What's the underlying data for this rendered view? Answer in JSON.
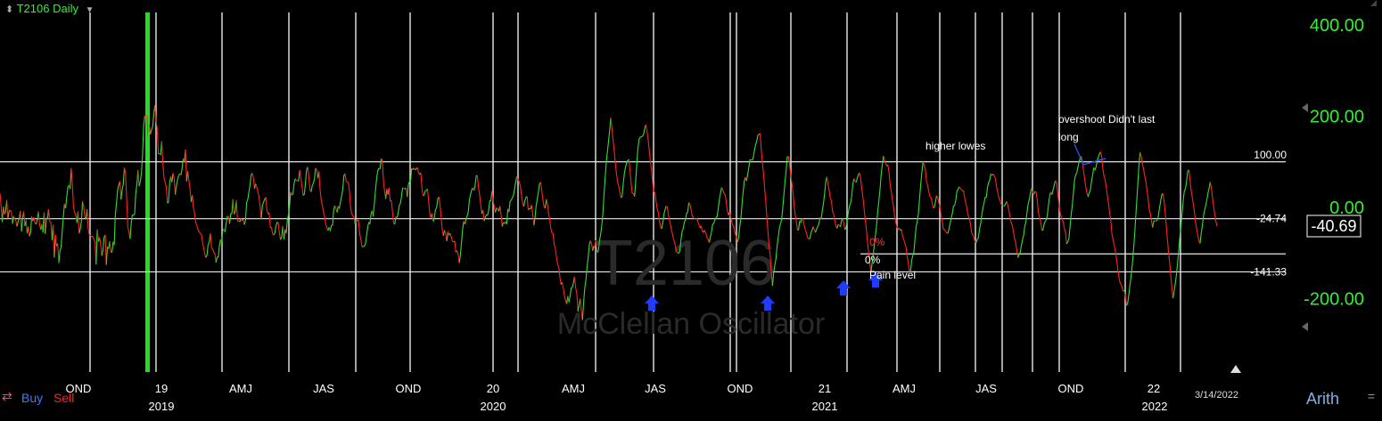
{
  "header": {
    "symbol_label": "T2106 Daily",
    "sort_icon": "up-down-arrow-icon",
    "dropdown_icon": "chevron-down-icon"
  },
  "toolbar": {
    "buy_label": "Buy",
    "sell_label": "Sell",
    "scale_label": "Arith",
    "date_label": "3/14/2022",
    "colors": {
      "buy": "#3a7dff",
      "sell": "#ff2222"
    }
  },
  "chart_data": {
    "type": "line",
    "watermark_title": "T2106",
    "watermark_subtitle": "McClellan Oscillator",
    "y_axis": {
      "ticks": [
        "400.00",
        "200.00",
        "0.00",
        "-200.00"
      ],
      "tick_values": [
        400,
        200,
        0,
        -200
      ],
      "color": "#33ee33",
      "range": [
        -330,
        460
      ]
    },
    "current_value": "-40.69",
    "horizontal_levels": [
      {
        "value": 100,
        "label": "100.00"
      },
      {
        "value": -24.74,
        "label": "-24.74"
      },
      {
        "value": -141.33,
        "label": "-141.33"
      },
      {
        "value": -102,
        "label": ""
      }
    ],
    "x_axis": {
      "quarter_ticks": [
        "OND",
        "19",
        "AMJ",
        "JAS",
        "OND",
        "20",
        "AMJ",
        "JAS",
        "OND",
        "21",
        "AMJ",
        "JAS",
        "OND",
        "22"
      ],
      "year_ticks": [
        "2019",
        "2020",
        "2021",
        "2022"
      ]
    },
    "annotations": [
      {
        "text": "higher lowes"
      },
      {
        "text": "overshoot Didn't last"
      },
      {
        "text": "long"
      },
      {
        "text": "0%",
        "color": "#ff3333"
      },
      {
        "text": "0%"
      },
      {
        "text": "Pain level"
      }
    ],
    "buy_markers": 4,
    "series": [
      {
        "colors": {
          "rising": "#33dd33",
          "falling": "#ff2222"
        },
        "values": [
          31,
          2,
          -32,
          2,
          -15,
          -9,
          16,
          -24,
          -9,
          -6,
          -10,
          -36,
          -19,
          -25,
          -29,
          -42,
          -31,
          -24,
          -8,
          -53,
          -24,
          -9,
          -41,
          -28,
          -57,
          -42,
          -63,
          -55,
          -20,
          -30,
          -22,
          -35,
          -37,
          -26,
          -9,
          -37,
          -49,
          -37,
          -55,
          -11,
          -58,
          -24,
          -24,
          -4,
          -31,
          -34,
          -72,
          -38,
          -110,
          -60,
          -85,
          -79,
          -122,
          -96,
          -87,
          -52,
          -22,
          8,
          -2,
          22,
          44,
          49,
          40,
          86,
          50,
          -1,
          -11,
          -18,
          -34,
          -9,
          -57,
          -46,
          -31,
          13,
          2,
          -21,
          -24,
          -4,
          -46,
          -60,
          -62,
          -64,
          -64,
          -69,
          -77,
          -125,
          -48,
          -75,
          -66,
          -81,
          -106,
          -96,
          -66,
          -60,
          -126,
          -86,
          -91,
          -74,
          -98,
          -98,
          -75,
          -83,
          -14,
          10,
          38,
          49,
          57,
          17,
          39,
          51,
          87,
          76,
          18,
          -44,
          -53,
          -69,
          -34,
          -17,
          -17,
          -15,
          29,
          50,
          82,
          46,
          56,
          74,
          112,
          179,
          201,
          194,
          202,
          147,
          181,
          160,
          171,
          177,
          206,
          224,
          189,
          172,
          118,
          118,
          115,
          145,
          96,
          65,
          55,
          44,
          9,
          12,
          54,
          68,
          55,
          75,
          62,
          28,
          48,
          61,
          70,
          74,
          71,
          85,
          107,
          99,
          127,
          57,
          80,
          58,
          41,
          12,
          27,
          -1,
          -13,
          -33,
          -39,
          -49,
          -53,
          -57,
          -59,
          -76,
          -88,
          -102,
          -110,
          -104,
          -82,
          -76,
          -57,
          -88,
          -91,
          -99,
          -101,
          -121,
          -108,
          -110,
          -84,
          -70,
          -79,
          -49,
          -49,
          -54,
          -34,
          -19,
          -20,
          -36,
          -14,
          -13,
          18,
          -15,
          -8,
          15,
          -30,
          -29,
          -32,
          -24,
          -29,
          -26,
          -38,
          -30,
          11,
          16,
          33,
          49,
          71,
          75,
          64,
          41,
          52,
          44,
          35,
          23,
          1,
          -25,
          5,
          11,
          18,
          22,
          -7,
          -14,
          -12,
          -44,
          -44,
          -58,
          -61,
          -56,
          -41,
          -33,
          -33,
          -56,
          -71,
          -65,
          -41,
          -70,
          -48,
          -57,
          -29,
          -16,
          3,
          34,
          27,
          30,
          52,
          63,
          59,
          58,
          59,
          82,
          65,
          46,
          26,
          29,
          51,
          82,
          89,
          69,
          39,
          34,
          47,
          53,
          62,
          86,
          83,
          64,
          79,
          39,
          16,
          4,
          -10,
          -20,
          -37,
          -45,
          -51,
          -43,
          -52,
          -39,
          -40,
          -6,
          4,
          -3,
          -11,
          3,
          -3,
          12,
          24,
          39,
          70,
          74,
          58,
          55,
          54,
          34,
          -2,
          -14,
          -18,
          -25,
          -37,
          -26,
          -30,
          -28,
          -59,
          -69,
          -86,
          -86,
          -85,
          -81,
          -64,
          -45,
          -32,
          -37,
          -15,
          -7,
          -20,
          10,
          39,
          63,
          80,
          86,
          84,
          107,
          103,
          57,
          37,
          19,
          41,
          28,
          43,
          14,
          15,
          -9,
          -35,
          -37,
          -21,
          -22,
          -13,
          4,
          9,
          24,
          43,
          42,
          40,
          43,
          23,
          50,
          56,
          58,
          86,
          83,
          86,
          82,
          85,
          87,
          76,
          72,
          76,
          44,
          26,
          27,
          36,
          37,
          41,
          12,
          -15,
          -22,
          -13,
          -31,
          -23,
          -5,
          -1,
          18,
          23,
          6,
          -20,
          -49,
          -62,
          -50,
          -57,
          -74,
          -53,
          -61,
          -57,
          -65,
          -74,
          -76,
          -74,
          -98,
          -95,
          -102,
          -122,
          -106,
          -77,
          -47,
          -30,
          -37,
          -26,
          -19,
          -10,
          17,
          28,
          38,
          43,
          37,
          47,
          69,
          70,
          45,
          27,
          6,
          -14,
          -6,
          -30,
          -22,
          -17,
          -17,
          -7,
          14,
          15,
          36,
          16,
          0,
          -11,
          -1,
          -3,
          -9,
          3,
          -16,
          -42,
          -33,
          -36,
          -31,
          -37,
          -3,
          -10,
          13,
          16,
          21,
          27,
          42,
          57,
          68,
          61,
          56,
          46,
          28,
          9,
          2,
          14,
          22,
          24,
          -5,
          -3,
          -3,
          5,
          -16,
          -39,
          -24,
          3,
          18,
          33,
          52,
          55,
          36,
          16,
          1,
          -2,
          18,
          8,
          -14,
          -26,
          -46,
          -56,
          -58,
          -82,
          -90,
          -108,
          -126,
          -130,
          -154,
          -169,
          -164,
          -177,
          -193,
          -204,
          -212,
          -194,
          -208,
          -194,
          -177,
          -175,
          -165,
          -152,
          -177,
          -190,
          -228,
          -214,
          -200,
          -228,
          -247,
          -207,
          -176,
          -160,
          -131,
          -109,
          -83,
          -73,
          -79,
          -95,
          -84,
          -89,
          -74,
          -99,
          -95,
          -73,
          -60,
          -40,
          -13,
          26,
          64,
          100,
          121,
          145,
          169,
          197,
          174,
          147,
          126,
          98,
          74,
          57,
          47,
          33,
          21,
          24,
          52,
          75,
          88,
          98,
          103,
          105,
          81,
          52,
          31,
          30,
          24,
          55,
          95,
          131,
          149,
          154,
          155,
          156,
          160,
          173,
          181,
          168,
          150,
          124,
          102,
          82,
          55,
          33,
          33,
          13,
          -2,
          -11,
          -28,
          -43,
          -47,
          -34,
          -15,
          -5,
          3,
          0,
          -17,
          -29,
          -42,
          -53,
          -64,
          -74,
          -82,
          -96,
          -100,
          -100,
          -96,
          -72,
          -53,
          -47,
          -33,
          -27,
          -13,
          -11,
          11,
          6,
          -5,
          -19,
          -22,
          -25,
          -25,
          -24,
          -31,
          -38,
          -45,
          -41,
          -53,
          -54,
          -50,
          -56,
          -66,
          -69,
          -77,
          -65,
          -55,
          -38,
          -35,
          -28,
          -22,
          -20,
          -2,
          17,
          32,
          44,
          38,
          32,
          27,
          15,
          -8,
          -17,
          -10,
          -21,
          -32,
          -40,
          -46,
          -58,
          -64,
          -76,
          -67,
          -42,
          -25,
          6,
          34,
          57,
          66,
          58,
          72,
          87,
          104,
          105,
          103,
          110,
          124,
          137,
          145,
          158,
          160,
          162,
          127,
          99,
          76,
          41,
          15,
          -23,
          -55,
          -87,
          -107,
          -145,
          -172,
          -143,
          -127,
          -112,
          -86,
          -66,
          -46,
          -36,
          -28,
          -2,
          26,
          56,
          80,
          110,
          112,
          97,
          74,
          54,
          34,
          8,
          -15,
          -29,
          -50,
          -49,
          -29,
          -34,
          -24,
          -27,
          -40,
          -48,
          -57,
          -66,
          -69,
          -68,
          -56,
          -50,
          -42,
          -50,
          -55,
          -47,
          -42,
          -36,
          -22,
          -25,
          -7,
          8,
          30,
          55,
          67,
          52,
          38,
          22,
          15,
          -9,
          -14,
          -27,
          -41,
          -46,
          -37,
          -39,
          -43,
          -29,
          -25,
          -35,
          -49,
          -44,
          -30,
          -11,
          3,
          9,
          24,
          51,
          63,
          57,
          55,
          65,
          73,
          75,
          61,
          39,
          21,
          -4,
          -28,
          -48,
          -77,
          -100,
          -121,
          -142,
          -123,
          -105,
          -82,
          -60,
          -38,
          -9,
          15,
          39,
          71,
          92,
          113,
          104,
          97,
          91,
          93,
          77,
          49,
          36,
          15,
          0,
          -20,
          -33,
          -44,
          -48,
          -45,
          -51,
          -48,
          -64,
          -70,
          -79,
          -87,
          -107,
          -122,
          -139,
          -142,
          -116,
          -106,
          -97,
          -67,
          -41,
          -30,
          -12,
          20,
          50,
          76,
          100,
          93,
          85,
          59,
          49,
          37,
          24,
          22,
          13,
          -1,
          0,
          11,
          26,
          21,
          11,
          1,
          -18,
          -29,
          -48,
          -49,
          -53,
          -56,
          -57,
          -48,
          -35,
          -24,
          -12,
          3,
          4,
          16,
          35,
          40,
          45,
          42,
          38,
          36,
          36,
          19,
          8,
          -4,
          -18,
          -23,
          -36,
          -56,
          -60,
          -67,
          -74,
          -78,
          -70,
          -67,
          -48,
          -35,
          -17,
          -2,
          10,
          23,
          21,
          44,
          54,
          60,
          74,
          70,
          73,
          70,
          63,
          46,
          34,
          21,
          16,
          8,
          4,
          4,
          3,
          8,
          13,
          4,
          -7,
          -21,
          -34,
          -40,
          -54,
          -68,
          -78,
          -95,
          -110,
          -102,
          -99,
          -84,
          -71,
          -61,
          -42,
          -32,
          -10,
          7,
          17,
          32,
          42,
          31,
          29,
          35,
          34,
          17,
          -11,
          -21,
          -30,
          -50,
          -50,
          -37,
          -31,
          -28,
          -17,
          7,
          24,
          34,
          28,
          38,
          48,
          58,
          56,
          35,
          12,
          -9,
          -19,
          -26,
          -32,
          -46,
          -55,
          -80,
          -76,
          -69,
          -43,
          -15,
          3,
          32,
          61,
          71,
          76,
          89,
          99,
          109,
          112,
          100,
          80,
          61,
          44,
          31,
          23,
          32,
          38,
          57,
          71,
          88,
          81,
          89,
          101,
          110,
          117,
          122,
          111,
          84,
          69,
          61,
          44,
          27,
          10,
          -11,
          -28,
          -57,
          -71,
          -82,
          -94,
          -111,
          -131,
          -149,
          -163,
          -169,
          -175,
          -183,
          -183,
          -195,
          -215,
          -210,
          -190,
          -170,
          -150,
          -127,
          -98,
          -65,
          -24,
          12,
          54,
          95,
          121,
          112,
          94,
          85,
          70,
          58,
          40,
          21,
          -5,
          -13,
          -29,
          -44,
          -30,
          -29,
          -30,
          -28,
          -21,
          -3,
          12,
          27,
          31,
          17,
          -6,
          -37,
          -68,
          -95,
          -119,
          -147,
          -176,
          -199,
          -185,
          -168,
          -150,
          -125,
          -97,
          -69,
          -42,
          -16,
          12,
          35,
          41,
          54,
          78,
          83,
          62,
          39,
          23,
          7,
          -10,
          -33,
          -48,
          -61,
          -74,
          -79,
          -57,
          -40,
          -18,
          -7,
          4,
          17,
          32,
          42,
          56,
          41,
          21,
          1,
          -15,
          -31,
          -41
        ]
      }
    ]
  }
}
